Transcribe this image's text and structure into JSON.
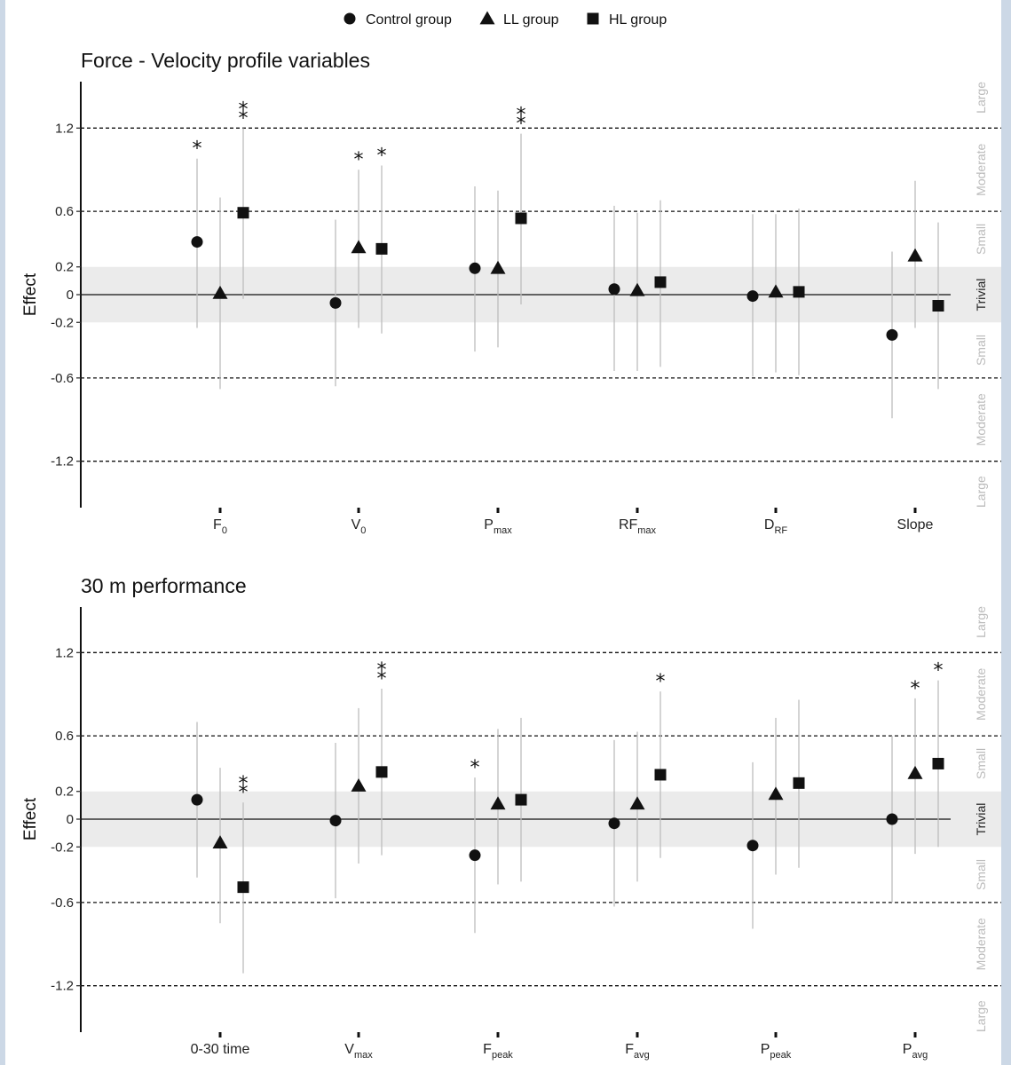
{
  "legend": [
    {
      "marker": "circle",
      "label": "Control group"
    },
    {
      "marker": "triangle",
      "label": "LL group"
    },
    {
      "marker": "square",
      "label": "HL group"
    }
  ],
  "colors": {
    "marker": "#111111",
    "errorbar": "#bdbdbd",
    "trivial_band": "#ebebeb",
    "axis": "#111111",
    "zone_text": "#bbbbbb"
  },
  "chart_data": [
    {
      "type": "scatter",
      "title": "Force - Velocity profile variables",
      "ylabel": "Effect",
      "xlabel": "",
      "ylim": [
        -1.55,
        1.55
      ],
      "yticks": [
        1.2,
        0.6,
        0.2,
        0,
        -0.2,
        -0.6,
        -1.2
      ],
      "ytick_labels": [
        "1.2",
        "0.6",
        "0.2",
        "0",
        "-0.2",
        "-0.6",
        "-1.2"
      ],
      "reference_lines": [
        1.2,
        0.6,
        -0.6,
        -1.2
      ],
      "trivial_band": [
        -0.2,
        0.2
      ],
      "zones": [
        {
          "label": "Large",
          "y": 1.42
        },
        {
          "label": "Moderate",
          "y": 0.9
        },
        {
          "label": "Small",
          "y": 0.4
        },
        {
          "label": "Trivial",
          "y": 0
        },
        {
          "label": "Small",
          "y": -0.4
        },
        {
          "label": "Moderate",
          "y": -0.9
        },
        {
          "label": "Large",
          "y": -1.42
        }
      ],
      "categories": [
        {
          "main": "F",
          "sub": "0"
        },
        {
          "main": "V",
          "sub": "0"
        },
        {
          "main": "P",
          "sub": "max"
        },
        {
          "main": "RF",
          "sub": "max"
        },
        {
          "main": "D",
          "sub": "RF"
        },
        {
          "main": "Slope",
          "sub": ""
        }
      ],
      "series": [
        {
          "name": "Control group",
          "marker": "circle",
          "values": [
            0.38,
            -0.06,
            0.19,
            0.04,
            -0.01,
            -0.29
          ],
          "lower": [
            -0.24,
            -0.66,
            -0.41,
            -0.55,
            -0.59,
            -0.89
          ],
          "upper": [
            0.98,
            0.54,
            0.78,
            0.64,
            0.58,
            0.31
          ],
          "stars": [
            "*",
            "",
            "",
            "",
            "",
            ""
          ]
        },
        {
          "name": "LL group",
          "marker": "triangle",
          "values": [
            0.01,
            0.34,
            0.19,
            0.03,
            0.02,
            0.28
          ],
          "lower": [
            -0.68,
            -0.24,
            -0.38,
            -0.55,
            -0.56,
            -0.24
          ],
          "upper": [
            0.7,
            0.9,
            0.75,
            0.59,
            0.58,
            0.82
          ],
          "stars": [
            "",
            "*",
            "",
            "",
            "",
            ""
          ]
        },
        {
          "name": "HL group",
          "marker": "square",
          "values": [
            0.59,
            0.33,
            0.55,
            0.09,
            0.02,
            -0.08
          ],
          "lower": [
            -0.03,
            -0.28,
            -0.07,
            -0.52,
            -0.58,
            -0.68
          ],
          "upper": [
            1.2,
            0.93,
            1.16,
            0.68,
            0.62,
            0.52
          ],
          "stars": [
            "**",
            "*",
            "**",
            "",
            "",
            ""
          ]
        }
      ]
    },
    {
      "type": "scatter",
      "title": "30 m performance",
      "ylabel": "Effect",
      "xlabel": "",
      "ylim": [
        -1.55,
        1.55
      ],
      "yticks": [
        1.2,
        0.6,
        0.2,
        0,
        -0.2,
        -0.6,
        -1.2
      ],
      "ytick_labels": [
        "1.2",
        "0.6",
        "0.2",
        "0",
        "-0.2",
        "-0.6",
        "-1.2"
      ],
      "reference_lines": [
        1.2,
        0.6,
        -0.6,
        -1.2
      ],
      "trivial_band": [
        -0.2,
        0.2
      ],
      "zones": [
        {
          "label": "Large",
          "y": 1.42
        },
        {
          "label": "Moderate",
          "y": 0.9
        },
        {
          "label": "Small",
          "y": 0.4
        },
        {
          "label": "Trivial",
          "y": 0
        },
        {
          "label": "Small",
          "y": -0.4
        },
        {
          "label": "Moderate",
          "y": -0.9
        },
        {
          "label": "Large",
          "y": -1.42
        }
      ],
      "categories": [
        {
          "main": "0-30 time",
          "sub": ""
        },
        {
          "main": "V",
          "sub": "max"
        },
        {
          "main": "F",
          "sub": "peak"
        },
        {
          "main": "F",
          "sub": "avg"
        },
        {
          "main": "P",
          "sub": "peak"
        },
        {
          "main": "P",
          "sub": "avg"
        }
      ],
      "series": [
        {
          "name": "Control group",
          "marker": "circle",
          "values": [
            0.14,
            -0.01,
            -0.26,
            -0.03,
            -0.19,
            0.0
          ],
          "lower": [
            -0.42,
            -0.57,
            -0.82,
            -0.63,
            -0.79,
            -0.6
          ],
          "upper": [
            0.7,
            0.55,
            0.3,
            0.57,
            0.41,
            0.6
          ],
          "stars": [
            "",
            "",
            "*",
            "",
            "",
            ""
          ]
        },
        {
          "name": "LL group",
          "marker": "triangle",
          "values": [
            -0.17,
            0.24,
            0.11,
            0.11,
            0.18,
            0.33
          ],
          "lower": [
            -0.75,
            -0.32,
            -0.47,
            -0.45,
            -0.4,
            -0.25
          ],
          "upper": [
            0.37,
            0.8,
            0.65,
            0.63,
            0.73,
            0.87
          ],
          "stars": [
            "",
            "",
            "",
            "",
            "",
            "*"
          ]
        },
        {
          "name": "HL group",
          "marker": "square",
          "values": [
            -0.49,
            0.34,
            0.14,
            0.32,
            0.26,
            0.4
          ],
          "lower": [
            -1.11,
            -0.26,
            -0.45,
            -0.28,
            -0.35,
            -0.2
          ],
          "upper": [
            0.12,
            0.94,
            0.73,
            0.92,
            0.86,
            1.0
          ],
          "stars": [
            "**",
            "**",
            "",
            "*",
            "",
            "*"
          ]
        }
      ]
    }
  ]
}
